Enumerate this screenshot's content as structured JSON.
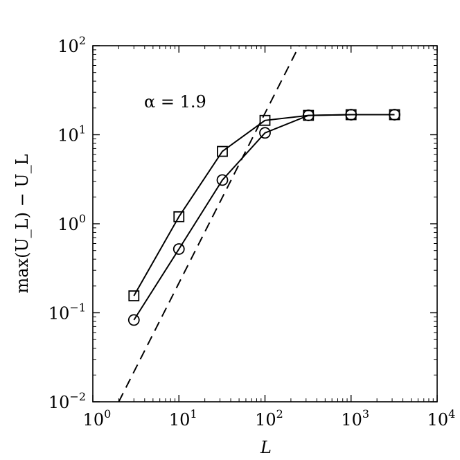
{
  "chart_data": {
    "type": "line",
    "xscale": "log",
    "yscale": "log",
    "xlim": [
      1,
      10000
    ],
    "ylim": [
      0.01,
      100
    ],
    "xlabel": "L",
    "ylabel": "max(U_L) − U_L",
    "grid": false,
    "annotation": "α = 1.9",
    "x_ticks": [
      {
        "base": "10",
        "exp": "0"
      },
      {
        "base": "10",
        "exp": "1"
      },
      {
        "base": "10",
        "exp": "2"
      },
      {
        "base": "10",
        "exp": "3"
      },
      {
        "base": "10",
        "exp": "4"
      }
    ],
    "y_ticks": [
      {
        "base": "10",
        "exp": "−2"
      },
      {
        "base": "10",
        "exp": "−1"
      },
      {
        "base": "10",
        "exp": "0"
      },
      {
        "base": "10",
        "exp": "1"
      },
      {
        "base": "10",
        "exp": "2"
      }
    ],
    "series": [
      {
        "marker": "square",
        "line": "solid",
        "x": [
          3,
          10,
          32,
          100,
          320,
          1000,
          3200
        ],
        "y": [
          0.155,
          1.2,
          6.5,
          14.5,
          16.5,
          16.8,
          16.8
        ]
      },
      {
        "marker": "circle",
        "line": "solid",
        "x": [
          3,
          10,
          32,
          100,
          320,
          1000,
          3200
        ],
        "y": [
          0.083,
          0.52,
          3.1,
          10.5,
          16.5,
          16.8,
          16.8
        ]
      },
      {
        "marker": "none",
        "line": "dashed",
        "x": [
          2,
          250
        ],
        "y": [
          0.01,
          100
        ]
      }
    ]
  }
}
